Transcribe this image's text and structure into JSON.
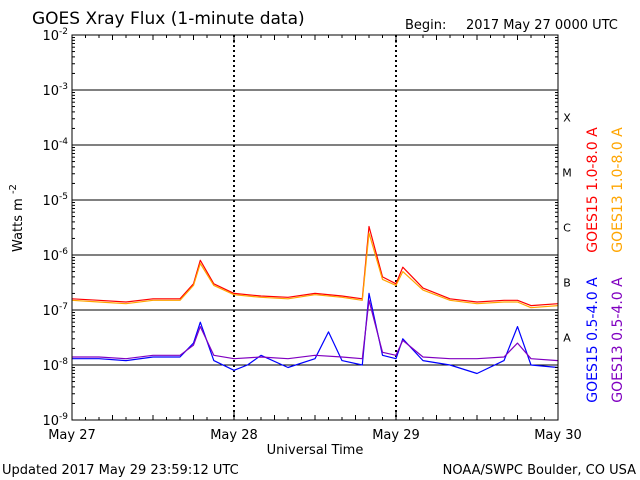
{
  "title": "GOES Xray Flux (1-minute data)",
  "begin_label": "Begin:",
  "begin_value": "2017 May 27 0000 UTC",
  "updated": "Updated 2017 May 29 23:59:12 UTC",
  "credit": "NOAA/SWPC Boulder, CO USA",
  "chart_data": {
    "type": "line",
    "title": "GOES Xray Flux (1-minute data)",
    "xlabel": "Universal Time",
    "ylabel": "Watts m",
    "ylabel_sup": "-2",
    "yscale": "log",
    "ylim": [
      1e-09,
      0.01
    ],
    "xlim": [
      "2017-05-27 00:00",
      "2017-05-30 00:00"
    ],
    "x_ticks": [
      {
        "x": "2017-05-27 00:00",
        "label": "May 27"
      },
      {
        "x": "2017-05-28 00:00",
        "label": "May 28"
      },
      {
        "x": "2017-05-29 00:00",
        "label": "May 29"
      },
      {
        "x": "2017-05-30 00:00",
        "label": "May 30"
      }
    ],
    "y_ticks": [
      {
        "value": 0.01,
        "base": "10",
        "exp": "-2"
      },
      {
        "value": 0.001,
        "base": "10",
        "exp": "-3"
      },
      {
        "value": 0.0001,
        "base": "10",
        "exp": "-4"
      },
      {
        "value": 1e-05,
        "base": "10",
        "exp": "-5"
      },
      {
        "value": 1e-06,
        "base": "10",
        "exp": "-6"
      },
      {
        "value": 1e-07,
        "base": "10",
        "exp": "-7"
      },
      {
        "value": 1e-08,
        "base": "10",
        "exp": "-8"
      },
      {
        "value": 1e-09,
        "base": "10",
        "exp": "-9"
      }
    ],
    "flare_classes": [
      {
        "label": "X",
        "value": 0.000316
      },
      {
        "label": "M",
        "value": 3.16e-05
      },
      {
        "label": "C",
        "value": 3.16e-06
      },
      {
        "label": "B",
        "value": 3.16e-07
      },
      {
        "label": "A",
        "value": 3.16e-08
      }
    ],
    "grid_lines": [
      0.001,
      0.0001,
      1e-05,
      1e-06,
      1e-07,
      1e-08
    ],
    "series": [
      {
        "name": "GOES15 1.0-8.0 A",
        "color": "#ff0000",
        "x": [
          "2017-05-27 00:00",
          "2017-05-27 04:00",
          "2017-05-27 08:00",
          "2017-05-27 12:00",
          "2017-05-27 16:00",
          "2017-05-27 18:00",
          "2017-05-27 19:00",
          "2017-05-27 21:00",
          "2017-05-28 00:00",
          "2017-05-28 04:00",
          "2017-05-28 08:00",
          "2017-05-28 12:00",
          "2017-05-28 16:00",
          "2017-05-28 19:00",
          "2017-05-28 20:00",
          "2017-05-28 22:00",
          "2017-05-29 00:00",
          "2017-05-29 01:00",
          "2017-05-29 04:00",
          "2017-05-29 08:00",
          "2017-05-29 12:00",
          "2017-05-29 16:00",
          "2017-05-29 18:00",
          "2017-05-29 20:00",
          "2017-05-30 00:00"
        ],
        "y": [
          1.6e-07,
          1.5e-07,
          1.4e-07,
          1.6e-07,
          1.6e-07,
          3e-07,
          8e-07,
          3e-07,
          2e-07,
          1.8e-07,
          1.7e-07,
          2e-07,
          1.8e-07,
          1.6e-07,
          3.3e-06,
          4e-07,
          3e-07,
          6e-07,
          2.5e-07,
          1.6e-07,
          1.4e-07,
          1.5e-07,
          1.5e-07,
          1.2e-07,
          1.3e-07
        ]
      },
      {
        "name": "GOES13 1.0-8.0 A",
        "color": "#ffa500",
        "x": [
          "2017-05-27 00:00",
          "2017-05-27 04:00",
          "2017-05-27 08:00",
          "2017-05-27 12:00",
          "2017-05-27 16:00",
          "2017-05-27 18:00",
          "2017-05-27 19:00",
          "2017-05-27 21:00",
          "2017-05-28 00:00",
          "2017-05-28 04:00",
          "2017-05-28 08:00",
          "2017-05-28 12:00",
          "2017-05-28 16:00",
          "2017-05-28 19:00",
          "2017-05-28 20:00",
          "2017-05-28 22:00",
          "2017-05-29 00:00",
          "2017-05-29 01:00",
          "2017-05-29 04:00",
          "2017-05-29 08:00",
          "2017-05-29 12:00",
          "2017-05-29 16:00",
          "2017-05-29 18:00",
          "2017-05-29 20:00",
          "2017-05-30 00:00"
        ],
        "y": [
          1.5e-07,
          1.4e-07,
          1.3e-07,
          1.5e-07,
          1.5e-07,
          2.8e-07,
          7e-07,
          2.8e-07,
          1.9e-07,
          1.7e-07,
          1.6e-07,
          1.9e-07,
          1.7e-07,
          1.5e-07,
          2.5e-06,
          3.6e-07,
          2.8e-07,
          5e-07,
          2.3e-07,
          1.5e-07,
          1.3e-07,
          1.4e-07,
          1.4e-07,
          1.1e-07,
          1.2e-07
        ]
      },
      {
        "name": "GOES15 0.5-4.0 A",
        "color": "#0000ff",
        "x": [
          "2017-05-27 00:00",
          "2017-05-27 04:00",
          "2017-05-27 08:00",
          "2017-05-27 12:00",
          "2017-05-27 16:00",
          "2017-05-27 18:00",
          "2017-05-27 19:00",
          "2017-05-27 21:00",
          "2017-05-28 00:00",
          "2017-05-28 02:00",
          "2017-05-28 04:00",
          "2017-05-28 08:00",
          "2017-05-28 12:00",
          "2017-05-28 14:00",
          "2017-05-28 16:00",
          "2017-05-28 19:00",
          "2017-05-28 20:00",
          "2017-05-28 22:00",
          "2017-05-29 00:00",
          "2017-05-29 01:00",
          "2017-05-29 04:00",
          "2017-05-29 08:00",
          "2017-05-29 12:00",
          "2017-05-29 16:00",
          "2017-05-29 18:00",
          "2017-05-29 20:00",
          "2017-05-30 00:00"
        ],
        "y": [
          1.3e-08,
          1.3e-08,
          1.2e-08,
          1.4e-08,
          1.4e-08,
          2.5e-08,
          6e-08,
          1.2e-08,
          8e-09,
          1e-08,
          1.5e-08,
          9e-09,
          1.3e-08,
          4e-08,
          1.2e-08,
          1e-08,
          2e-07,
          1.5e-08,
          1.3e-08,
          3e-08,
          1.2e-08,
          1e-08,
          7e-09,
          1.2e-08,
          5e-08,
          1e-08,
          9e-09
        ]
      },
      {
        "name": "GOES13 0.5-4.0 A",
        "color": "#8000c0",
        "x": [
          "2017-05-27 00:00",
          "2017-05-27 04:00",
          "2017-05-27 08:00",
          "2017-05-27 12:00",
          "2017-05-27 16:00",
          "2017-05-27 18:00",
          "2017-05-27 19:00",
          "2017-05-27 21:00",
          "2017-05-28 00:00",
          "2017-05-28 04:00",
          "2017-05-28 08:00",
          "2017-05-28 12:00",
          "2017-05-28 16:00",
          "2017-05-28 19:00",
          "2017-05-28 20:00",
          "2017-05-28 22:00",
          "2017-05-29 00:00",
          "2017-05-29 01:00",
          "2017-05-29 04:00",
          "2017-05-29 08:00",
          "2017-05-29 12:00",
          "2017-05-29 16:00",
          "2017-05-29 18:00",
          "2017-05-29 20:00",
          "2017-05-30 00:00"
        ],
        "y": [
          1.4e-08,
          1.4e-08,
          1.3e-08,
          1.5e-08,
          1.5e-08,
          2.3e-08,
          5e-08,
          1.5e-08,
          1.3e-08,
          1.4e-08,
          1.3e-08,
          1.5e-08,
          1.4e-08,
          1.3e-08,
          1.5e-07,
          1.7e-08,
          1.5e-08,
          2.8e-08,
          1.4e-08,
          1.3e-08,
          1.3e-08,
          1.4e-08,
          2.5e-08,
          1.3e-08,
          1.2e-08
        ]
      }
    ],
    "grid": true,
    "legend_position": "right (vertical)"
  }
}
